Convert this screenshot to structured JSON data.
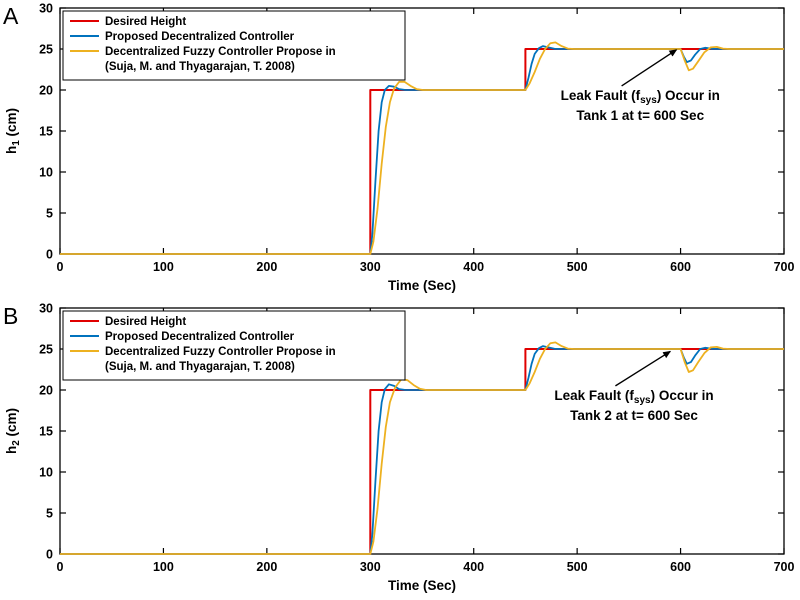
{
  "figure": {
    "background": "#ffffff",
    "panels": [
      "A",
      "B"
    ]
  },
  "chart_data": [
    {
      "type": "line",
      "panel_label": "A",
      "title": "",
      "xlabel": "Time (Sec)",
      "ylabel_base": "h",
      "ylabel_sub": "1",
      "ylabel_unit": " (cm)",
      "xlim": [
        0,
        700
      ],
      "ylim": [
        0,
        30
      ],
      "xticks": [
        0,
        100,
        200,
        300,
        400,
        500,
        600,
        700
      ],
      "yticks": [
        0,
        5,
        10,
        15,
        20,
        25,
        30
      ],
      "grid": false,
      "legend_position": "top-left",
      "legend": [
        {
          "label": "Desired Height",
          "color": "#e00000"
        },
        {
          "label": "Proposed Decentralized Controller",
          "color": "#0072bd"
        },
        {
          "label": "Decentralized Fuzzy Controller Propose in",
          "label2": "(Suja, M. and Thyagarajan, T. 2008)",
          "color": "#edb120"
        }
      ],
      "annotation": {
        "pre": "Leak Fault (f",
        "sub": "sys",
        "post": ") Occur in",
        "line2": "Tank 1 at t= 600 Sec",
        "x": 561,
        "y": 18.8,
        "arrow": [
          543,
          20.5,
          596,
          24.9
        ]
      },
      "series": [
        {
          "name": "Desired Height",
          "color": "#e00000",
          "width": 2,
          "points": [
            [
              0,
              0
            ],
            [
              300,
              0
            ],
            [
              300,
              20
            ],
            [
              450,
              20
            ],
            [
              450,
              25
            ],
            [
              700,
              25
            ]
          ]
        },
        {
          "name": "Proposed Decentralized Controller",
          "color": "#0072bd",
          "width": 1.8,
          "points": [
            [
              0,
              0
            ],
            [
              300,
              0
            ],
            [
              302,
              2.5
            ],
            [
              305,
              9
            ],
            [
              308,
              15
            ],
            [
              311,
              18.5
            ],
            [
              314,
              20
            ],
            [
              318,
              20.5
            ],
            [
              323,
              20.4
            ],
            [
              328,
              20.1
            ],
            [
              334,
              20
            ],
            [
              450,
              20
            ],
            [
              453,
              21.5
            ],
            [
              456,
              23.2
            ],
            [
              459,
              24.4
            ],
            [
              463,
              25.1
            ],
            [
              467,
              25.35
            ],
            [
              472,
              25.2
            ],
            [
              478,
              25.03
            ],
            [
              484,
              25
            ],
            [
              600,
              25
            ],
            [
              603,
              24.1
            ],
            [
              606,
              23.4
            ],
            [
              610,
              23.6
            ],
            [
              614,
              24.3
            ],
            [
              619,
              25
            ],
            [
              624,
              25.15
            ],
            [
              630,
              25.02
            ],
            [
              636,
              25
            ],
            [
              700,
              25
            ]
          ]
        },
        {
          "name": "Decentralized Fuzzy Controller Propose in (Suja, M. and Thyagarajan, T. 2008)",
          "color": "#edb120",
          "width": 1.8,
          "points": [
            [
              0,
              0
            ],
            [
              300,
              0
            ],
            [
              303,
              1.5
            ],
            [
              307,
              5.5
            ],
            [
              311,
              11
            ],
            [
              315,
              15.5
            ],
            [
              319,
              18.5
            ],
            [
              323,
              20.2
            ],
            [
              328,
              21
            ],
            [
              333,
              21
            ],
            [
              339,
              20.5
            ],
            [
              345,
              20.1
            ],
            [
              351,
              20
            ],
            [
              450,
              20
            ],
            [
              454,
              20.8
            ],
            [
              459,
              22.2
            ],
            [
              464,
              23.8
            ],
            [
              469,
              25
            ],
            [
              474,
              25.7
            ],
            [
              479,
              25.8
            ],
            [
              485,
              25.35
            ],
            [
              491,
              25.05
            ],
            [
              497,
              25
            ],
            [
              600,
              25
            ],
            [
              604,
              23.6
            ],
            [
              608,
              22.4
            ],
            [
              612,
              22.6
            ],
            [
              617,
              23.5
            ],
            [
              623,
              24.6
            ],
            [
              629,
              25.2
            ],
            [
              635,
              25.25
            ],
            [
              641,
              25.05
            ],
            [
              647,
              25
            ],
            [
              700,
              25
            ]
          ]
        }
      ]
    },
    {
      "type": "line",
      "panel_label": "B",
      "title": "",
      "xlabel": "Time (Sec)",
      "ylabel_base": "h",
      "ylabel_sub": "2",
      "ylabel_unit": " (cm)",
      "xlim": [
        0,
        700
      ],
      "ylim": [
        0,
        30
      ],
      "xticks": [
        0,
        100,
        200,
        300,
        400,
        500,
        600,
        700
      ],
      "yticks": [
        0,
        5,
        10,
        15,
        20,
        25,
        30
      ],
      "grid": false,
      "legend_position": "top-left",
      "legend": [
        {
          "label": "Desired Height",
          "color": "#e00000"
        },
        {
          "label": "Proposed Decentralized Controller",
          "color": "#0072bd"
        },
        {
          "label": "Decentralized Fuzzy Controller Propose in",
          "label2": "(Suja, M. and Thyagarajan, T. 2008)",
          "color": "#edb120"
        }
      ],
      "annotation": {
        "pre": "Leak Fault (f",
        "sub": "sys",
        "post": ") Occur in",
        "line2": "Tank 2 at t= 600 Sec",
        "x": 555,
        "y": 18.8,
        "arrow": [
          537,
          20.5,
          590,
          24.7
        ]
      },
      "series": [
        {
          "name": "Desired Height",
          "color": "#e00000",
          "width": 2,
          "points": [
            [
              0,
              0
            ],
            [
              300,
              0
            ],
            [
              300,
              20
            ],
            [
              450,
              20
            ],
            [
              450,
              25
            ],
            [
              700,
              25
            ]
          ]
        },
        {
          "name": "Proposed Decentralized Controller",
          "color": "#0072bd",
          "width": 1.8,
          "points": [
            [
              0,
              0
            ],
            [
              300,
              0
            ],
            [
              302,
              2.5
            ],
            [
              305,
              9
            ],
            [
              308,
              15
            ],
            [
              311,
              18.5
            ],
            [
              314,
              20.1
            ],
            [
              318,
              20.7
            ],
            [
              323,
              20.5
            ],
            [
              328,
              20.1
            ],
            [
              334,
              20
            ],
            [
              450,
              20
            ],
            [
              453,
              21.5
            ],
            [
              456,
              23.2
            ],
            [
              459,
              24.4
            ],
            [
              463,
              25.1
            ],
            [
              467,
              25.35
            ],
            [
              472,
              25.2
            ],
            [
              478,
              25.03
            ],
            [
              484,
              25
            ],
            [
              600,
              25
            ],
            [
              603,
              24
            ],
            [
              606,
              23.2
            ],
            [
              610,
              23.4
            ],
            [
              614,
              24.2
            ],
            [
              619,
              25
            ],
            [
              624,
              25.15
            ],
            [
              630,
              25.02
            ],
            [
              636,
              25
            ],
            [
              700,
              25
            ]
          ]
        },
        {
          "name": "Decentralized Fuzzy Controller Propose in (Suja, M. and Thyagarajan, T. 2008)",
          "color": "#edb120",
          "width": 1.8,
          "points": [
            [
              0,
              0
            ],
            [
              300,
              0
            ],
            [
              303,
              1.5
            ],
            [
              307,
              5.5
            ],
            [
              311,
              11
            ],
            [
              315,
              15.5
            ],
            [
              319,
              18.5
            ],
            [
              324,
              20.3
            ],
            [
              330,
              21.3
            ],
            [
              336,
              21.2
            ],
            [
              342,
              20.6
            ],
            [
              348,
              20.15
            ],
            [
              354,
              20
            ],
            [
              450,
              20
            ],
            [
              454,
              20.8
            ],
            [
              459,
              22.2
            ],
            [
              464,
              23.8
            ],
            [
              469,
              25
            ],
            [
              474,
              25.7
            ],
            [
              479,
              25.8
            ],
            [
              485,
              25.35
            ],
            [
              491,
              25.05
            ],
            [
              497,
              25
            ],
            [
              600,
              25
            ],
            [
              604,
              23.4
            ],
            [
              608,
              22.2
            ],
            [
              612,
              22.4
            ],
            [
              617,
              23.4
            ],
            [
              623,
              24.5
            ],
            [
              629,
              25.2
            ],
            [
              635,
              25.25
            ],
            [
              641,
              25.05
            ],
            [
              647,
              25
            ],
            [
              700,
              25
            ]
          ]
        }
      ]
    }
  ]
}
